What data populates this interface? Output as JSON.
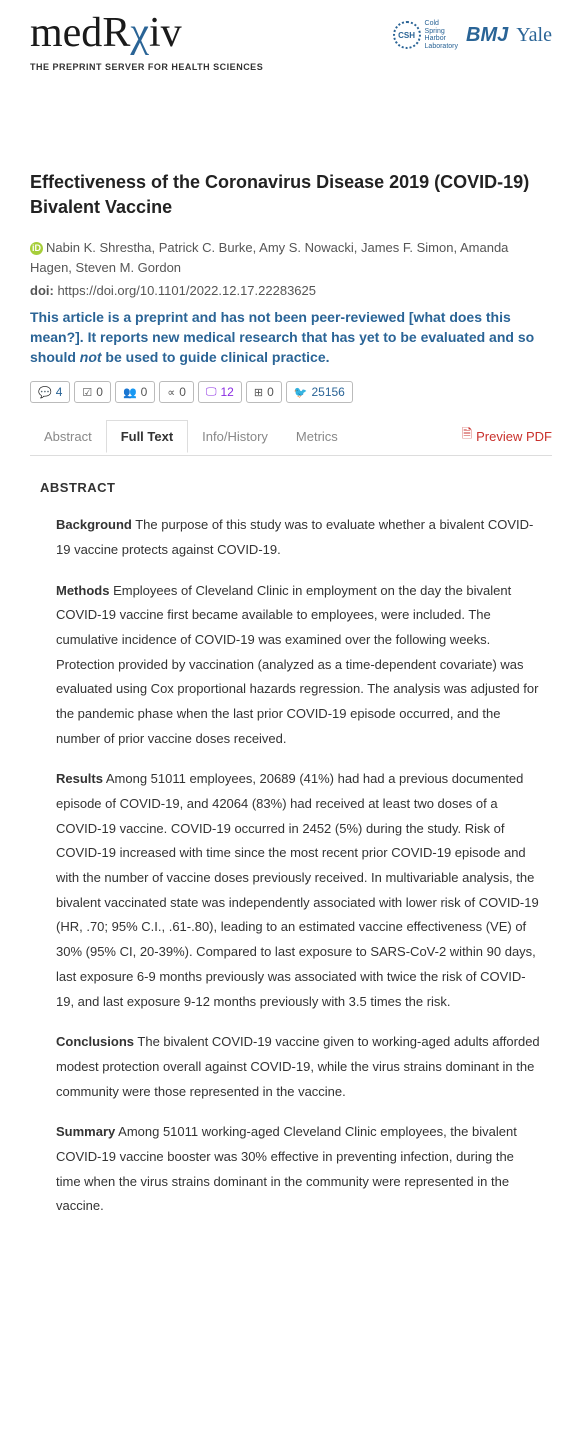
{
  "header": {
    "logo_prefix": "med",
    "logo_r": "R",
    "logo_chi": "χ",
    "logo_suffix": "iv",
    "tagline": "THE PREPRINT SERVER FOR HEALTH SCIENCES",
    "csh_abbr": "CSH",
    "csh_line1": "Cold",
    "csh_line2": "Spring",
    "csh_line3": "Harbor",
    "csh_line4": "Laboratory",
    "bmj": "BMJ",
    "yale": "Yale"
  },
  "article": {
    "title": "Effectiveness of the Coronavirus Disease 2019 (COVID-19) Bivalent Vaccine",
    "orcid_glyph": "iD",
    "authors": "Nabin K. Shrestha, Patrick C. Burke, Amy S. Nowacki, James F. Simon, Amanda Hagen, Steven M. Gordon",
    "doi_label": "doi:",
    "doi": "https://doi.org/10.1101/2022.12.17.22283625",
    "disclaimer_1": "This article is a preprint and has not been peer-reviewed [what does this mean?]. It reports new medical research that has yet to be evaluated and so should ",
    "disclaimer_em": "not",
    "disclaimer_2": " be used to guide clinical practice."
  },
  "stats": {
    "comments": "4",
    "checks": "0",
    "users": "0",
    "shares": "0",
    "media": "12",
    "video": "0",
    "tweets": "25156"
  },
  "tabs": {
    "abstract": "Abstract",
    "fulltext": "Full Text",
    "info": "Info/History",
    "metrics": "Metrics",
    "preview": "Preview PDF"
  },
  "abstract": {
    "heading": "ABSTRACT",
    "background_label": "Background",
    "background": " The purpose of this study was to evaluate whether a bivalent COVID-19 vaccine protects against COVID-19.",
    "methods_label": "Methods",
    "methods": " Employees of Cleveland Clinic in employment on the day the bivalent COVID-19 vaccine first became available to employees, were included. The cumulative incidence of COVID-19 was examined over the following weeks. Protection provided by vaccination (analyzed as a time-dependent covariate) was evaluated using Cox proportional hazards regression. The analysis was adjusted for the pandemic phase when the last prior COVID-19 episode occurred, and the number of prior vaccine doses received.",
    "results_label": "Results",
    "results": " Among 51011 employees, 20689 (41%) had had a previous documented episode of COVID-19, and 42064 (83%) had received at least two doses of a COVID-19 vaccine. COVID-19 occurred in 2452 (5%) during the study. Risk of COVID-19 increased with time since the most recent prior COVID-19 episode and with the number of vaccine doses previously received. In multivariable analysis, the bivalent vaccinated state was independently associated with lower risk of COVID-19 (HR, .70; 95% C.I., .61-.80), leading to an estimated vaccine effectiveness (VE) of 30% (95% CI, 20-39%). Compared to last exposure to SARS-CoV-2 within 90 days, last exposure 6-9 months previously was associated with twice the risk of COVID-19, and last exposure 9-12 months previously with 3.5 times the risk.",
    "conclusions_label": "Conclusions",
    "conclusions": " The bivalent COVID-19 vaccine given to working-aged adults afforded modest protection overall against COVID-19, while the virus strains dominant in the community were those represented in the vaccine.",
    "summary_label": "Summary",
    "summary": " Among 51011 working-aged Cleveland Clinic employees, the bivalent COVID-19 vaccine booster was 30% effective in preventing infection, during the time when the virus strains dominant in the community were represented in the vaccine."
  }
}
